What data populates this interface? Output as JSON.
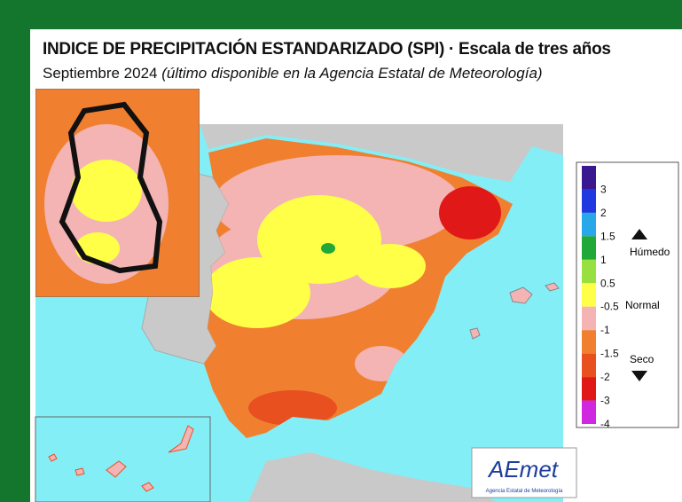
{
  "header": {
    "title": "INDICE DE PRECIPITACIÓN ESTANDARIZADO (SPI) · Escala de tres años",
    "subtitle": {
      "date": "Septiembre 2024",
      "note": "(último disponible en la Agencia Estatal de Meteorología)"
    }
  },
  "legend": {
    "colors": [
      "#3a1890",
      "#2038e0",
      "#28a8e8",
      "#20a838",
      "#98e040",
      "#ffff48",
      "#f4b4b4",
      "#f08030",
      "#e85020",
      "#e01818",
      "#d028e0"
    ],
    "ticks": [
      "3",
      "2",
      "1.5",
      "1",
      "0.5",
      "-0.5",
      "-1",
      "-1.5",
      "-2",
      "-3",
      "-4"
    ],
    "labels": {
      "wet": "Húmedo",
      "normal": "Normal",
      "dry": "Seco"
    }
  },
  "logo": {
    "name": "AEmet",
    "org": "Agencia Estatal de Meteorología"
  }
}
